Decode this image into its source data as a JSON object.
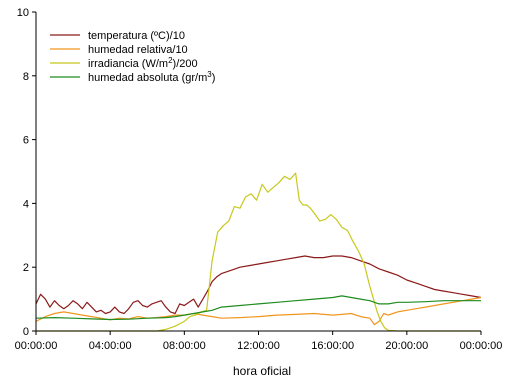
{
  "chart_data": {
    "type": "line",
    "xlabel": "hora oficial",
    "ylabel": "",
    "x_ticks": [
      "00:00:00",
      "04:00:00",
      "08:00:00",
      "12:00:00",
      "16:00:00",
      "20:00:00",
      "00:00:00"
    ],
    "xlim_hours": [
      0,
      24
    ],
    "y_ticks": [
      "0",
      "2",
      "4",
      "6",
      "8",
      "10"
    ],
    "ylim": [
      0,
      10
    ],
    "legend_position": "top-left",
    "grid": false,
    "series": [
      {
        "name": "temperatura (ºC)/10",
        "color": "#8b1a1a",
        "x": [
          0,
          0.25,
          0.5,
          0.75,
          1,
          1.25,
          1.5,
          1.75,
          2,
          2.25,
          2.5,
          2.75,
          3,
          3.25,
          3.5,
          3.75,
          4,
          4.25,
          4.5,
          4.75,
          5,
          5.25,
          5.5,
          5.75,
          6,
          6.25,
          6.5,
          6.75,
          7,
          7.25,
          7.5,
          7.75,
          8,
          8.25,
          8.5,
          8.75,
          9,
          9.25,
          9.5,
          9.75,
          10,
          10.5,
          11,
          11.5,
          12,
          12.5,
          13,
          13.5,
          14,
          14.5,
          15,
          15.5,
          16,
          16.5,
          17,
          17.5,
          18,
          18.5,
          19,
          19.5,
          20,
          20.5,
          21,
          21.5,
          22,
          22.5,
          23,
          23.5,
          24
        ],
        "y": [
          0.85,
          1.15,
          1.0,
          0.75,
          0.95,
          0.8,
          0.7,
          0.8,
          0.95,
          0.85,
          0.7,
          0.9,
          0.75,
          0.6,
          0.65,
          0.55,
          0.6,
          0.75,
          0.6,
          0.55,
          0.7,
          0.9,
          0.95,
          0.8,
          0.75,
          0.85,
          0.9,
          0.95,
          0.75,
          0.6,
          0.55,
          0.85,
          0.8,
          0.9,
          1.0,
          0.75,
          1.0,
          1.25,
          1.55,
          1.7,
          1.8,
          1.9,
          2.0,
          2.05,
          2.1,
          2.15,
          2.2,
          2.25,
          2.3,
          2.35,
          2.3,
          2.3,
          2.35,
          2.35,
          2.3,
          2.2,
          2.1,
          1.95,
          1.85,
          1.75,
          1.6,
          1.5,
          1.4,
          1.3,
          1.25,
          1.2,
          1.15,
          1.1,
          1.05
        ]
      },
      {
        "name": "humedad relativa/10",
        "color": "#f0961e",
        "x": [
          0,
          0.5,
          1,
          1.5,
          2,
          2.5,
          3,
          3.5,
          4,
          4.5,
          5,
          5.5,
          6,
          6.5,
          7,
          7.5,
          8,
          8.5,
          9,
          9.5,
          10,
          11,
          12,
          13,
          14,
          15,
          16,
          16.5,
          17,
          17.5,
          18,
          18.25,
          18.5,
          18.75,
          19,
          19.25,
          19.5,
          20,
          20.5,
          21,
          21.5,
          22,
          22.5,
          23,
          23.5,
          24
        ],
        "y": [
          0.3,
          0.45,
          0.55,
          0.6,
          0.55,
          0.5,
          0.45,
          0.4,
          0.35,
          0.4,
          0.38,
          0.45,
          0.4,
          0.42,
          0.45,
          0.5,
          0.5,
          0.55,
          0.5,
          0.45,
          0.4,
          0.42,
          0.45,
          0.5,
          0.52,
          0.55,
          0.5,
          0.52,
          0.55,
          0.45,
          0.4,
          0.2,
          0.3,
          0.55,
          0.5,
          0.55,
          0.6,
          0.65,
          0.7,
          0.75,
          0.8,
          0.85,
          0.9,
          0.95,
          1.0,
          1.05
        ]
      },
      {
        "name": "irradiancia (W/m²)/200",
        "color": "#c8c81e",
        "x": [
          0,
          6.5,
          7,
          7.5,
          8,
          8.3,
          8.6,
          8.9,
          9.2,
          9.5,
          9.8,
          10.1,
          10.4,
          10.7,
          11,
          11.3,
          11.6,
          11.9,
          12.2,
          12.5,
          12.8,
          13.1,
          13.4,
          13.7,
          14,
          14.2,
          14.4,
          14.6,
          14.8,
          15,
          15.3,
          15.6,
          15.9,
          16.2,
          16.5,
          16.8,
          17.1,
          17.4,
          17.7,
          18,
          18.2,
          18.4,
          18.6,
          18.8,
          19,
          19.5,
          24
        ],
        "y": [
          0,
          0,
          0.05,
          0.15,
          0.3,
          0.45,
          0.5,
          0.6,
          0.65,
          2.2,
          3.1,
          3.3,
          3.45,
          3.9,
          3.85,
          4.2,
          4.3,
          4.1,
          4.6,
          4.35,
          4.5,
          4.65,
          4.85,
          4.75,
          4.95,
          4.1,
          3.95,
          3.95,
          3.85,
          3.7,
          3.45,
          3.5,
          3.65,
          3.5,
          3.25,
          3.15,
          2.8,
          2.5,
          2.1,
          1.4,
          1.0,
          0.6,
          0.3,
          0.1,
          0.02,
          0,
          0
        ]
      },
      {
        "name": "humedad absoluta (gr/m³)",
        "color": "#1e8c1e",
        "x": [
          0,
          1,
          2,
          3,
          4,
          5,
          6,
          7,
          7.5,
          8,
          8.5,
          9,
          9.5,
          10,
          11,
          12,
          13,
          14,
          15,
          16,
          16.5,
          17,
          17.5,
          18,
          18.5,
          19,
          19.5,
          20,
          21,
          22,
          23,
          24
        ],
        "y": [
          0.4,
          0.42,
          0.4,
          0.38,
          0.36,
          0.37,
          0.4,
          0.42,
          0.45,
          0.5,
          0.55,
          0.6,
          0.65,
          0.75,
          0.8,
          0.85,
          0.9,
          0.95,
          1.0,
          1.05,
          1.1,
          1.05,
          1.0,
          0.95,
          0.85,
          0.85,
          0.9,
          0.9,
          0.92,
          0.95,
          0.95,
          0.95
        ]
      }
    ],
    "legend_items": [
      {
        "text": "temperatura (ºC)/10",
        "sup": "",
        "tail": ""
      },
      {
        "text": "humedad relativa/10",
        "sup": "",
        "tail": ""
      },
      {
        "text": "irradiancia (W/m",
        "sup": "2",
        "tail": ")/200"
      },
      {
        "text": "humedad absoluta (gr/m",
        "sup": "3",
        "tail": ")"
      }
    ]
  }
}
